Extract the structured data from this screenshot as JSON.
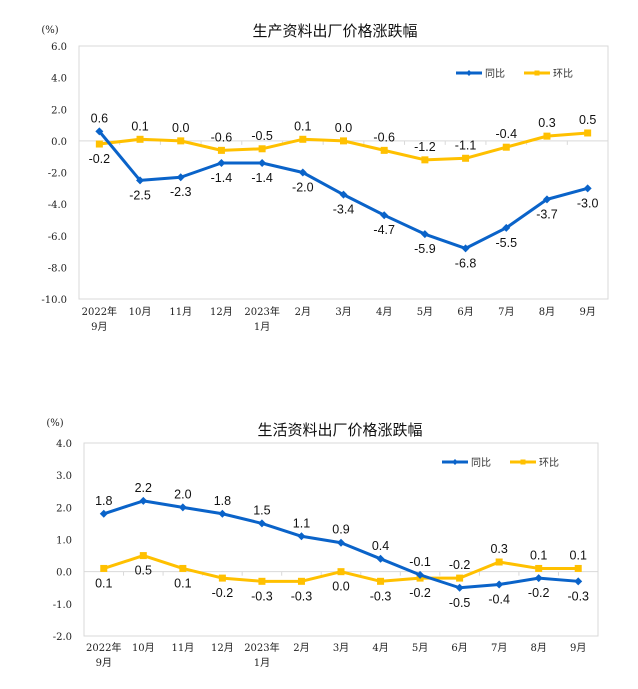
{
  "chart_data": [
    {
      "type": "line",
      "title": "生产资料出厂价格涨跌幅",
      "ylabel": "(%)",
      "xlabel": "",
      "ylim": [
        -10.0,
        6.0
      ],
      "yticks": [
        "6.0",
        "4.0",
        "2.0",
        "0.0",
        "-2.0",
        "-4.0",
        "-6.0",
        "-8.0",
        "-10.0"
      ],
      "ytick_values": [
        6,
        4,
        2,
        0,
        -2,
        -4,
        -6,
        -8,
        -10
      ],
      "categories": [
        [
          "2022年",
          "9月"
        ],
        [
          "10月"
        ],
        [
          "11月"
        ],
        [
          "12月"
        ],
        [
          "2023年",
          "1月"
        ],
        [
          "2月"
        ],
        [
          "3月"
        ],
        [
          "4月"
        ],
        [
          "5月"
        ],
        [
          "6月"
        ],
        [
          "7月"
        ],
        [
          "8月"
        ],
        [
          "9月"
        ]
      ],
      "grid": false,
      "legend": "top-right",
      "series": [
        {
          "name": "同比",
          "color": "#0a63c9",
          "marker": "diamond",
          "values": [
            0.6,
            -2.5,
            -2.3,
            -1.4,
            -1.4,
            -2.0,
            -3.4,
            -4.7,
            -5.9,
            -6.8,
            -5.5,
            -3.7,
            -3.0
          ],
          "labels": [
            "0.6",
            "-2.5",
            "-2.3",
            "-1.4",
            "-1.4",
            "-2.0",
            "-3.4",
            "-4.7",
            "-5.9",
            "-6.8",
            "-5.5",
            "-3.7",
            "-3.0"
          ],
          "label_pos": [
            "above",
            "below",
            "below",
            "below",
            "below",
            "below",
            "below",
            "below",
            "below",
            "below",
            "below",
            "below",
            "below"
          ]
        },
        {
          "name": "环比",
          "color": "#ffc000",
          "marker": "square",
          "values": [
            -0.2,
            0.1,
            0.0,
            -0.6,
            -0.5,
            0.1,
            0.0,
            -0.6,
            -1.2,
            -1.1,
            -0.4,
            0.3,
            0.5
          ],
          "labels": [
            "-0.2",
            "0.1",
            "0.0",
            "-0.6",
            "-0.5",
            "0.1",
            "0.0",
            "-0.6",
            "-1.2",
            "-1.1",
            "-0.4",
            "0.3",
            "0.5"
          ],
          "label_pos": [
            "below",
            "above",
            "above",
            "above",
            "above",
            "above",
            "above",
            "above",
            "above",
            "above",
            "above",
            "above",
            "above"
          ]
        }
      ]
    },
    {
      "type": "line",
      "title": "生活资料出厂价格涨跌幅",
      "ylabel": "(%)",
      "xlabel": "",
      "ylim": [
        -2.0,
        4.0
      ],
      "yticks": [
        "4.0",
        "3.0",
        "2.0",
        "1.0",
        "0.0",
        "-1.0",
        "-2.0"
      ],
      "ytick_values": [
        4,
        3,
        2,
        1,
        0,
        -1,
        -2
      ],
      "categories": [
        [
          "2022年",
          "9月"
        ],
        [
          "10月"
        ],
        [
          "11月"
        ],
        [
          "12月"
        ],
        [
          "2023年",
          "1月"
        ],
        [
          "2月"
        ],
        [
          "3月"
        ],
        [
          "4月"
        ],
        [
          "5月"
        ],
        [
          "6月"
        ],
        [
          "7月"
        ],
        [
          "8月"
        ],
        [
          "9月"
        ]
      ],
      "grid": false,
      "legend": "top-right",
      "series": [
        {
          "name": "同比",
          "color": "#0a63c9",
          "marker": "diamond",
          "values": [
            1.8,
            2.2,
            2.0,
            1.8,
            1.5,
            1.1,
            0.9,
            0.4,
            -0.1,
            -0.5,
            -0.4,
            -0.2,
            -0.3
          ],
          "labels": [
            "1.8",
            "2.2",
            "2.0",
            "1.8",
            "1.5",
            "1.1",
            "0.9",
            "0.4",
            "-0.1",
            "-0.5",
            "-0.4",
            "-0.2",
            "-0.3"
          ],
          "label_pos": [
            "above",
            "above",
            "above",
            "above",
            "above",
            "above",
            "above",
            "above",
            "above",
            "below",
            "below",
            "below",
            "below"
          ]
        },
        {
          "name": "环比",
          "color": "#ffc000",
          "marker": "square",
          "values": [
            0.1,
            0.5,
            0.1,
            -0.2,
            -0.3,
            -0.3,
            0.0,
            -0.3,
            -0.2,
            -0.2,
            0.3,
            0.1,
            0.1
          ],
          "labels": [
            "0.1",
            "0.5",
            "0.1",
            "-0.2",
            "-0.3",
            "-0.3",
            "0.0",
            "-0.3",
            "-0.2",
            "-0.2",
            "0.3",
            "0.1",
            "0.1"
          ],
          "label_pos": [
            "below",
            "below",
            "below",
            "below",
            "below",
            "below",
            "below",
            "below",
            "below",
            "above",
            "above",
            "above",
            "above"
          ]
        }
      ]
    }
  ]
}
